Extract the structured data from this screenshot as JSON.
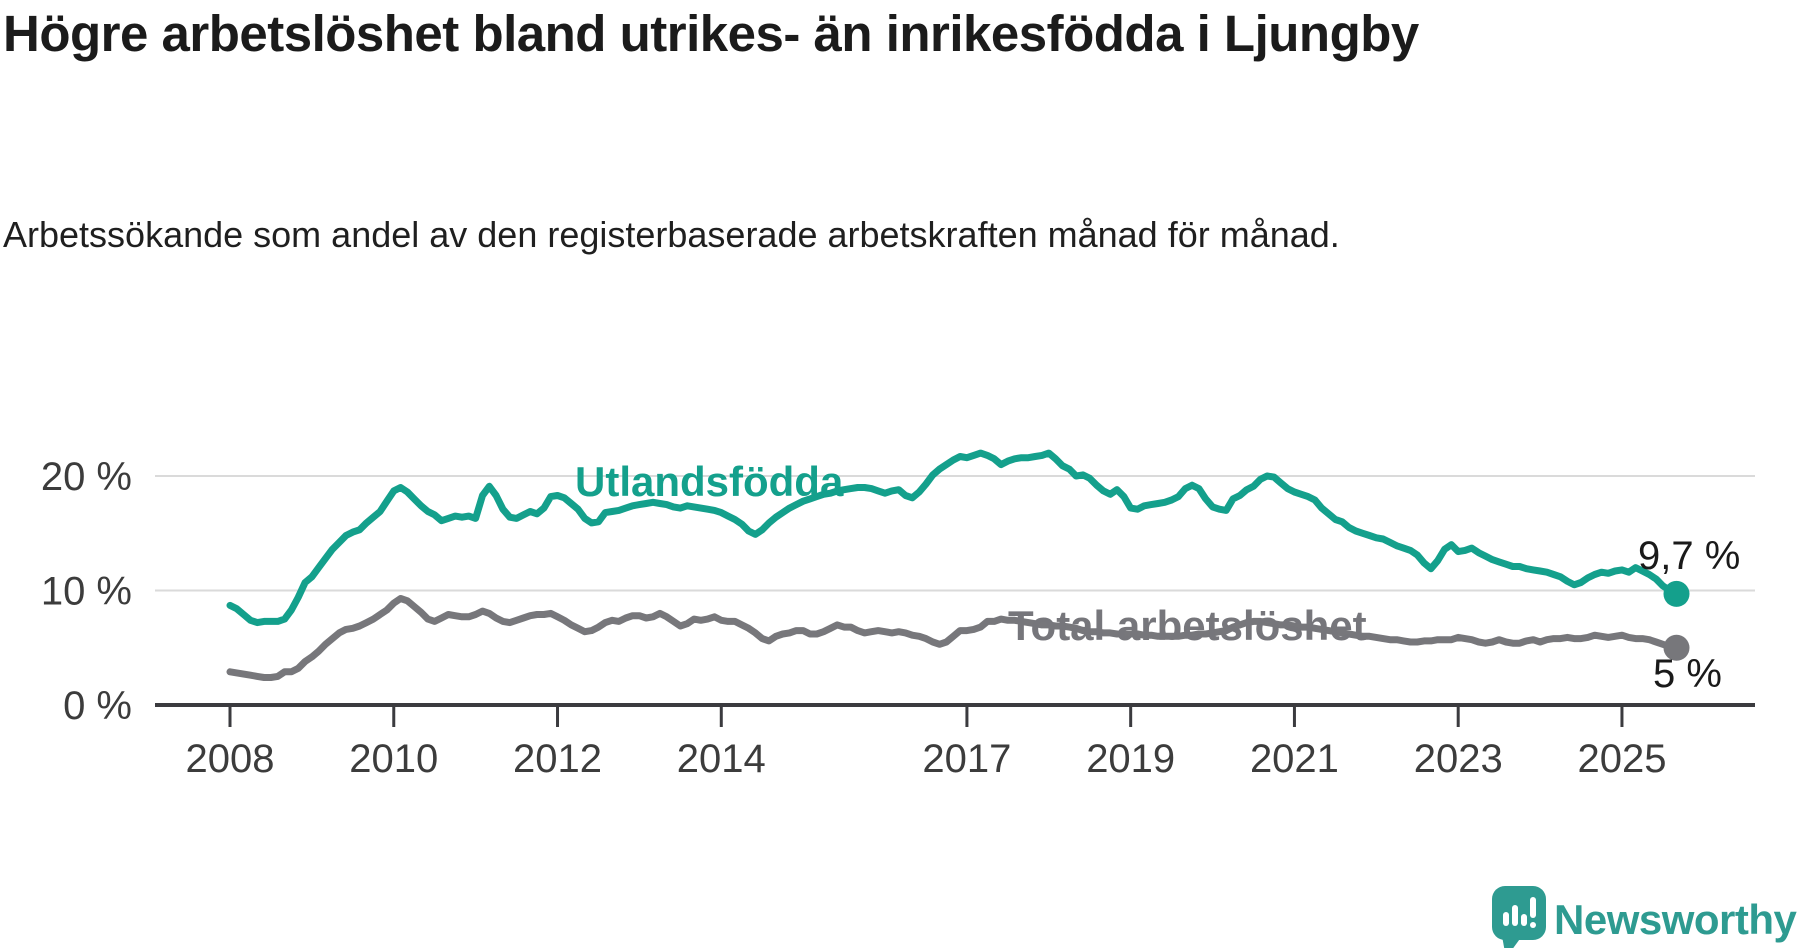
{
  "header": {
    "title": "Högre arbetslöshet bland utrikes- än inrikesfödda i Ljungby",
    "subtitle": "Arbetssökande som andel av den registerbaserade arbetskraften månad för månad."
  },
  "branding": {
    "logo_text": "Newsworthy",
    "logo_color": "#2E9B91",
    "logo_icon": "newsworthy-speech-bubble-bar-chart-icon"
  },
  "chart_data": {
    "type": "line",
    "title": "Högre arbetslöshet bland utrikes- än inrikesfödda i Ljungby",
    "subtitle": "Arbetssökande som andel av den registerbaserade arbetskraften månad för månad.",
    "frequency": "monthly",
    "start": "2008-01",
    "end": "2025-09",
    "grid": true,
    "axis_color": "#3B3B3F",
    "grid_color": "#DADADA",
    "tick_label_color": "#3C3C3C",
    "x_axis": {
      "unit": "year",
      "ticks": [
        2008,
        2010,
        2012,
        2014,
        2017,
        2019,
        2021,
        2023,
        2025
      ]
    },
    "y_axis": {
      "range": [
        0,
        23
      ],
      "ticks": [
        {
          "value": 0,
          "label": "0 %"
        },
        {
          "value": 10,
          "label": "10 %"
        },
        {
          "value": 20,
          "label": "20 %"
        }
      ]
    },
    "series": [
      {
        "name": "Utlandsfödda",
        "color": "#14A08C",
        "end_label": "9,7 %",
        "end_value": 9.7,
        "values": [
          8.7,
          8.4,
          7.9,
          7.4,
          7.2,
          7.3,
          7.3,
          7.3,
          7.5,
          8.3,
          9.4,
          10.7,
          11.2,
          12.0,
          12.8,
          13.6,
          14.2,
          14.8,
          15.1,
          15.3,
          15.9,
          16.4,
          16.9,
          17.8,
          18.7,
          19.0,
          18.6,
          18.0,
          17.4,
          16.9,
          16.6,
          16.1,
          16.3,
          16.5,
          16.4,
          16.5,
          16.3,
          18.3,
          19.1,
          18.3,
          17.1,
          16.4,
          16.3,
          16.6,
          16.9,
          16.7,
          17.2,
          18.2,
          18.3,
          18.1,
          17.6,
          17.1,
          16.3,
          15.9,
          16.0,
          16.8,
          16.9,
          17.0,
          17.2,
          17.4,
          17.5,
          17.6,
          17.7,
          17.6,
          17.5,
          17.3,
          17.2,
          17.4,
          17.3,
          17.2,
          17.1,
          17.0,
          16.8,
          16.5,
          16.2,
          15.8,
          15.2,
          14.9,
          15.3,
          15.9,
          16.4,
          16.8,
          17.2,
          17.5,
          17.8,
          18.0,
          18.2,
          18.4,
          18.5,
          18.7,
          18.8,
          18.9,
          19.0,
          19.0,
          18.9,
          18.7,
          18.5,
          18.7,
          18.8,
          18.3,
          18.1,
          18.6,
          19.3,
          20.1,
          20.6,
          21.0,
          21.4,
          21.7,
          21.6,
          21.8,
          22.0,
          21.8,
          21.5,
          21.0,
          21.3,
          21.5,
          21.6,
          21.6,
          21.7,
          21.8,
          22.0,
          21.5,
          20.9,
          20.6,
          20.0,
          20.1,
          19.8,
          19.2,
          18.7,
          18.4,
          18.8,
          18.2,
          17.2,
          17.1,
          17.4,
          17.5,
          17.6,
          17.7,
          17.9,
          18.2,
          18.9,
          19.2,
          18.9,
          18.0,
          17.3,
          17.1,
          17.0,
          18.0,
          18.3,
          18.8,
          19.1,
          19.7,
          20.0,
          19.9,
          19.4,
          18.9,
          18.6,
          18.4,
          18.2,
          17.9,
          17.2,
          16.7,
          16.2,
          16.0,
          15.5,
          15.2,
          15.0,
          14.8,
          14.6,
          14.5,
          14.2,
          13.9,
          13.7,
          13.5,
          13.1,
          12.4,
          11.9,
          12.6,
          13.6,
          14.0,
          13.4,
          13.5,
          13.7,
          13.3,
          13.0,
          12.7,
          12.5,
          12.3,
          12.1,
          12.1,
          11.9,
          11.8,
          11.7,
          11.6,
          11.4,
          11.2,
          10.8,
          10.5,
          10.7,
          11.1,
          11.4,
          11.6,
          11.5,
          11.7,
          11.8,
          11.6,
          12.0,
          11.7,
          11.4,
          11.0,
          10.4,
          10.0,
          9.7
        ]
      },
      {
        "name": "Total arbetslöshet",
        "color": "#77777B",
        "end_label": "5 %",
        "end_value": 5.0,
        "values": [
          2.9,
          2.8,
          2.7,
          2.6,
          2.5,
          2.4,
          2.4,
          2.5,
          2.9,
          2.9,
          3.2,
          3.8,
          4.2,
          4.7,
          5.3,
          5.8,
          6.3,
          6.6,
          6.7,
          6.9,
          7.2,
          7.5,
          7.9,
          8.3,
          8.9,
          9.3,
          9.1,
          8.6,
          8.1,
          7.5,
          7.3,
          7.6,
          7.9,
          7.8,
          7.7,
          7.7,
          7.9,
          8.2,
          8.0,
          7.6,
          7.3,
          7.2,
          7.4,
          7.6,
          7.8,
          7.9,
          7.9,
          8.0,
          7.7,
          7.4,
          7.0,
          6.7,
          6.4,
          6.5,
          6.8,
          7.2,
          7.4,
          7.3,
          7.6,
          7.8,
          7.8,
          7.6,
          7.7,
          8.0,
          7.7,
          7.3,
          6.9,
          7.1,
          7.5,
          7.4,
          7.5,
          7.7,
          7.4,
          7.3,
          7.3,
          7.0,
          6.7,
          6.3,
          5.8,
          5.6,
          6.0,
          6.2,
          6.3,
          6.5,
          6.5,
          6.2,
          6.2,
          6.4,
          6.7,
          7.0,
          6.8,
          6.8,
          6.5,
          6.3,
          6.4,
          6.5,
          6.4,
          6.3,
          6.4,
          6.3,
          6.1,
          6.0,
          5.8,
          5.5,
          5.3,
          5.5,
          6.0,
          6.5,
          6.5,
          6.6,
          6.8,
          7.3,
          7.3,
          7.5,
          7.4,
          7.4,
          7.3,
          7.2,
          7.1,
          7.0,
          7.0,
          6.9,
          6.9,
          6.8,
          6.7,
          6.5,
          6.4,
          6.4,
          6.3,
          6.3,
          6.2,
          6.2,
          6.2,
          6.2,
          6.1,
          6.1,
          6.0,
          6.0,
          6.0,
          6.0,
          6.1,
          6.1,
          6.2,
          6.2,
          6.3,
          6.4,
          6.5,
          6.8,
          7.0,
          7.2,
          7.3,
          7.3,
          7.2,
          7.1,
          7.0,
          7.0,
          6.9,
          6.8,
          6.8,
          6.7,
          6.6,
          6.5,
          6.4,
          6.3,
          6.2,
          6.1,
          6.0,
          6.0,
          5.9,
          5.8,
          5.7,
          5.7,
          5.6,
          5.5,
          5.5,
          5.6,
          5.6,
          5.7,
          5.7,
          5.7,
          5.9,
          5.8,
          5.7,
          5.5,
          5.4,
          5.5,
          5.7,
          5.5,
          5.4,
          5.4,
          5.6,
          5.7,
          5.5,
          5.7,
          5.8,
          5.8,
          5.9,
          5.8,
          5.8,
          5.9,
          6.1,
          6.0,
          5.9,
          6.0,
          6.1,
          5.9,
          5.8,
          5.8,
          5.7,
          5.5,
          5.3,
          5.1,
          5.0
        ]
      }
    ]
  }
}
